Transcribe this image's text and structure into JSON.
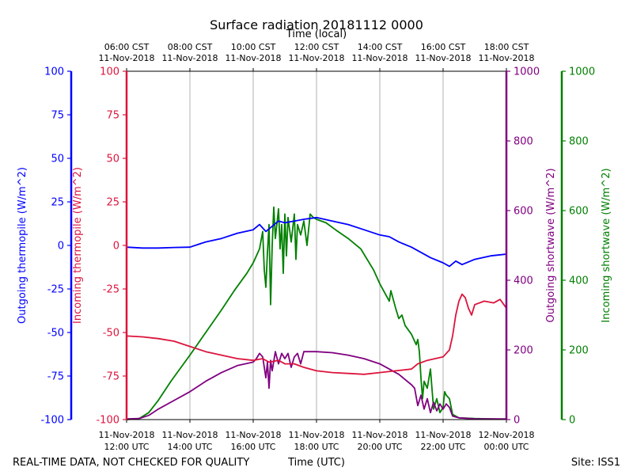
{
  "chart_data": {
    "type": "line",
    "title": "Surface radiation 20181112 0000",
    "top_axis_label": "Time (local)",
    "bottom_axis_label": "Time (UTC)",
    "footer_left": "REAL-TIME DATA, NOT CHECKED FOR QUALITY",
    "footer_right": "Site: ISS1",
    "x_hours_utc": [
      12,
      24
    ],
    "local_ticks": [
      {
        "h": 12,
        "line1": "06:00 CST",
        "line2": "11-Nov-2018"
      },
      {
        "h": 14,
        "line1": "08:00 CST",
        "line2": "11-Nov-2018"
      },
      {
        "h": 16,
        "line1": "10:00 CST",
        "line2": "11-Nov-2018"
      },
      {
        "h": 18,
        "line1": "12:00 CST",
        "line2": "11-Nov-2018"
      },
      {
        "h": 20,
        "line1": "14:00 CST",
        "line2": "11-Nov-2018"
      },
      {
        "h": 22,
        "line1": "16:00 CST",
        "line2": "11-Nov-2018"
      },
      {
        "h": 24,
        "line1": "18:00 CST",
        "line2": "11-Nov-2018"
      }
    ],
    "utc_ticks": [
      {
        "h": 12,
        "line1": "11-Nov-2018",
        "line2": "12:00 UTC"
      },
      {
        "h": 14,
        "line1": "11-Nov-2018",
        "line2": "14:00 UTC"
      },
      {
        "h": 16,
        "line1": "11-Nov-2018",
        "line2": "16:00 UTC"
      },
      {
        "h": 18,
        "line1": "11-Nov-2018",
        "line2": "18:00 UTC"
      },
      {
        "h": 20,
        "line1": "11-Nov-2018",
        "line2": "20:00 UTC"
      },
      {
        "h": 22,
        "line1": "11-Nov-2018",
        "line2": "22:00 UTC"
      },
      {
        "h": 24,
        "line1": "12-Nov-2018",
        "line2": "00:00 UTC"
      }
    ],
    "axes": [
      {
        "id": "outgoing_thermopile",
        "label": "Outgoing thermopile (W/m^2)",
        "color": "#0000ff",
        "side": "left-outer",
        "ylim": [
          -100,
          100
        ],
        "ticks": [
          -100,
          -75,
          -50,
          -25,
          0,
          25,
          50,
          75,
          100
        ]
      },
      {
        "id": "incoming_thermopile",
        "label": "Incoming thermopile (W/m^2)",
        "color": "#dc143c",
        "side": "left-inner",
        "ylim": [
          -100,
          100
        ],
        "ticks": [
          -100,
          -75,
          -50,
          -25,
          0,
          25,
          50,
          75,
          100
        ]
      },
      {
        "id": "outgoing_shortwave",
        "label": "Outgoing shortwave (W/m^2)",
        "color": "#800080",
        "side": "right-inner",
        "ylim": [
          0,
          1000
        ],
        "ticks": [
          0,
          200,
          400,
          600,
          800,
          1000
        ]
      },
      {
        "id": "incoming_shortwave",
        "label": "Incoming shortwave (W/m^2)",
        "color": "#008000",
        "side": "right-outer",
        "ylim": [
          0,
          1000
        ],
        "ticks": [
          0,
          200,
          400,
          600,
          800,
          1000
        ]
      }
    ],
    "series": [
      {
        "name": "Incoming shortwave",
        "axis": "incoming_shortwave",
        "color": "#008000",
        "points": [
          [
            12,
            0
          ],
          [
            12.4,
            3
          ],
          [
            12.7,
            20
          ],
          [
            13,
            55
          ],
          [
            13.4,
            110
          ],
          [
            14,
            185
          ],
          [
            14.5,
            250
          ],
          [
            15,
            315
          ],
          [
            15.4,
            370
          ],
          [
            15.8,
            420
          ],
          [
            16,
            450
          ],
          [
            16.1,
            470
          ],
          [
            16.2,
            490
          ],
          [
            16.3,
            540
          ],
          [
            16.35,
            430
          ],
          [
            16.4,
            380
          ],
          [
            16.45,
            480
          ],
          [
            16.5,
            560
          ],
          [
            16.55,
            330
          ],
          [
            16.6,
            500
          ],
          [
            16.65,
            610
          ],
          [
            16.7,
            520
          ],
          [
            16.8,
            605
          ],
          [
            16.85,
            490
          ],
          [
            16.9,
            560
          ],
          [
            16.95,
            420
          ],
          [
            17,
            590
          ],
          [
            17.05,
            470
          ],
          [
            17.1,
            580
          ],
          [
            17.2,
            510
          ],
          [
            17.3,
            590
          ],
          [
            17.35,
            460
          ],
          [
            17.4,
            560
          ],
          [
            17.5,
            530
          ],
          [
            17.6,
            570
          ],
          [
            17.7,
            500
          ],
          [
            17.8,
            590
          ],
          [
            17.9,
            580
          ],
          [
            18,
            575
          ],
          [
            18.3,
            565
          ],
          [
            18.6,
            545
          ],
          [
            19,
            520
          ],
          [
            19.4,
            490
          ],
          [
            19.8,
            430
          ],
          [
            20,
            390
          ],
          [
            20.3,
            340
          ],
          [
            20.35,
            370
          ],
          [
            20.5,
            320
          ],
          [
            20.6,
            290
          ],
          [
            20.7,
            300
          ],
          [
            20.8,
            270
          ],
          [
            21,
            245
          ],
          [
            21.15,
            215
          ],
          [
            21.2,
            230
          ],
          [
            21.25,
            195
          ],
          [
            21.3,
            120
          ],
          [
            21.35,
            60
          ],
          [
            21.4,
            110
          ],
          [
            21.5,
            90
          ],
          [
            21.6,
            145
          ],
          [
            21.7,
            30
          ],
          [
            21.8,
            60
          ],
          [
            21.9,
            20
          ],
          [
            22,
            35
          ],
          [
            22.05,
            80
          ],
          [
            22.1,
            70
          ],
          [
            22.2,
            60
          ],
          [
            22.3,
            15
          ],
          [
            22.5,
            5
          ],
          [
            23,
            3
          ],
          [
            24,
            1
          ]
        ]
      },
      {
        "name": "Outgoing shortwave",
        "axis": "outgoing_shortwave",
        "color": "#800080",
        "points": [
          [
            12,
            2
          ],
          [
            12.4,
            3
          ],
          [
            12.7,
            12
          ],
          [
            13,
            30
          ],
          [
            13.4,
            50
          ],
          [
            14,
            80
          ],
          [
            14.5,
            110
          ],
          [
            15,
            135
          ],
          [
            15.5,
            155
          ],
          [
            16,
            165
          ],
          [
            16.1,
            175
          ],
          [
            16.2,
            190
          ],
          [
            16.3,
            180
          ],
          [
            16.4,
            120
          ],
          [
            16.45,
            165
          ],
          [
            16.5,
            90
          ],
          [
            16.55,
            170
          ],
          [
            16.6,
            140
          ],
          [
            16.7,
            195
          ],
          [
            16.8,
            160
          ],
          [
            16.9,
            190
          ],
          [
            17,
            175
          ],
          [
            17.1,
            190
          ],
          [
            17.2,
            150
          ],
          [
            17.3,
            180
          ],
          [
            17.4,
            190
          ],
          [
            17.5,
            160
          ],
          [
            17.6,
            195
          ],
          [
            17.8,
            195
          ],
          [
            18,
            195
          ],
          [
            18.5,
            192
          ],
          [
            19,
            185
          ],
          [
            19.5,
            175
          ],
          [
            20,
            160
          ],
          [
            20.3,
            145
          ],
          [
            20.6,
            130
          ],
          [
            20.8,
            115
          ],
          [
            21,
            100
          ],
          [
            21.1,
            90
          ],
          [
            21.2,
            40
          ],
          [
            21.3,
            70
          ],
          [
            21.4,
            30
          ],
          [
            21.5,
            60
          ],
          [
            21.6,
            20
          ],
          [
            21.7,
            50
          ],
          [
            21.8,
            25
          ],
          [
            21.9,
            45
          ],
          [
            22,
            30
          ],
          [
            22.1,
            45
          ],
          [
            22.2,
            35
          ],
          [
            22.3,
            10
          ],
          [
            22.5,
            5
          ],
          [
            23,
            2
          ],
          [
            24,
            2
          ]
        ]
      },
      {
        "name": "Outgoing thermopile",
        "axis": "outgoing_thermopile",
        "color": "#0000ff",
        "points": [
          [
            12,
            -1
          ],
          [
            12.5,
            -1.5
          ],
          [
            13,
            -1.5
          ],
          [
            13.5,
            -1.2
          ],
          [
            14,
            -1
          ],
          [
            14.5,
            2
          ],
          [
            15,
            4
          ],
          [
            15.5,
            7
          ],
          [
            16,
            9
          ],
          [
            16.2,
            12
          ],
          [
            16.4,
            8
          ],
          [
            16.6,
            11
          ],
          [
            16.8,
            14
          ],
          [
            17,
            13
          ],
          [
            17.3,
            14
          ],
          [
            17.6,
            15
          ],
          [
            18,
            16
          ],
          [
            18.5,
            14
          ],
          [
            19,
            12
          ],
          [
            19.5,
            9
          ],
          [
            20,
            6
          ],
          [
            20.3,
            5
          ],
          [
            20.6,
            2
          ],
          [
            21,
            -1
          ],
          [
            21.3,
            -4
          ],
          [
            21.6,
            -7
          ],
          [
            22,
            -10
          ],
          [
            22.2,
            -12
          ],
          [
            22.4,
            -9
          ],
          [
            22.6,
            -11
          ],
          [
            23,
            -8
          ],
          [
            23.5,
            -6
          ],
          [
            24,
            -5
          ]
        ]
      },
      {
        "name": "Incoming thermopile",
        "axis": "incoming_thermopile",
        "color": "#dc143c",
        "points": [
          [
            12,
            -52
          ],
          [
            12.5,
            -52.5
          ],
          [
            13,
            -53.5
          ],
          [
            13.5,
            -55
          ],
          [
            14,
            -58
          ],
          [
            14.5,
            -61
          ],
          [
            15,
            -63
          ],
          [
            15.5,
            -65
          ],
          [
            16,
            -66
          ],
          [
            16.3,
            -65
          ],
          [
            16.5,
            -67
          ],
          [
            16.8,
            -66
          ],
          [
            17,
            -68
          ],
          [
            17.3,
            -68
          ],
          [
            17.6,
            -70
          ],
          [
            18,
            -72
          ],
          [
            18.5,
            -73
          ],
          [
            19,
            -73.5
          ],
          [
            19.5,
            -74
          ],
          [
            20,
            -73
          ],
          [
            20.5,
            -72
          ],
          [
            21,
            -71
          ],
          [
            21.2,
            -68
          ],
          [
            21.5,
            -66
          ],
          [
            22,
            -64
          ],
          [
            22.2,
            -60
          ],
          [
            22.3,
            -52
          ],
          [
            22.4,
            -40
          ],
          [
            22.5,
            -32
          ],
          [
            22.6,
            -28
          ],
          [
            22.7,
            -30
          ],
          [
            22.8,
            -36
          ],
          [
            22.9,
            -40
          ],
          [
            23,
            -34
          ],
          [
            23.3,
            -32
          ],
          [
            23.6,
            -33
          ],
          [
            23.8,
            -31
          ],
          [
            24,
            -36
          ]
        ]
      }
    ]
  }
}
